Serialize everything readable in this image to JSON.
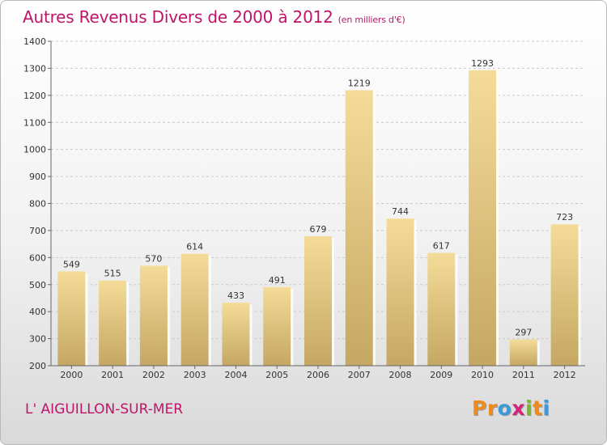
{
  "chart_data": {
    "type": "bar",
    "title": "Autres Revenus Divers de 2000 à 2012",
    "unit": "(en milliers d'€)",
    "categories": [
      "2000",
      "2001",
      "2002",
      "2003",
      "2004",
      "2005",
      "2006",
      "2007",
      "2008",
      "2009",
      "2010",
      "2011",
      "2012"
    ],
    "values": [
      549,
      515,
      570,
      614,
      433,
      491,
      679,
      1219,
      744,
      617,
      1293,
      297,
      723
    ],
    "ylim": [
      200,
      1400
    ],
    "yticks": [
      200,
      300,
      400,
      500,
      600,
      700,
      800,
      900,
      1000,
      1100,
      1200,
      1300,
      1400
    ],
    "grid": true,
    "bar_color": "#dcc07a"
  },
  "location": "L' AIGUILLON-SUR-MER",
  "logo": {
    "letters": [
      "P",
      "r",
      "o",
      "x",
      "i",
      "t",
      "i"
    ],
    "colors": [
      "#f08a1c",
      "#f08a1c",
      "#3b9ad9",
      "#d6247a",
      "#7ab82e",
      "#f08a1c",
      "#3b9ad9"
    ]
  }
}
